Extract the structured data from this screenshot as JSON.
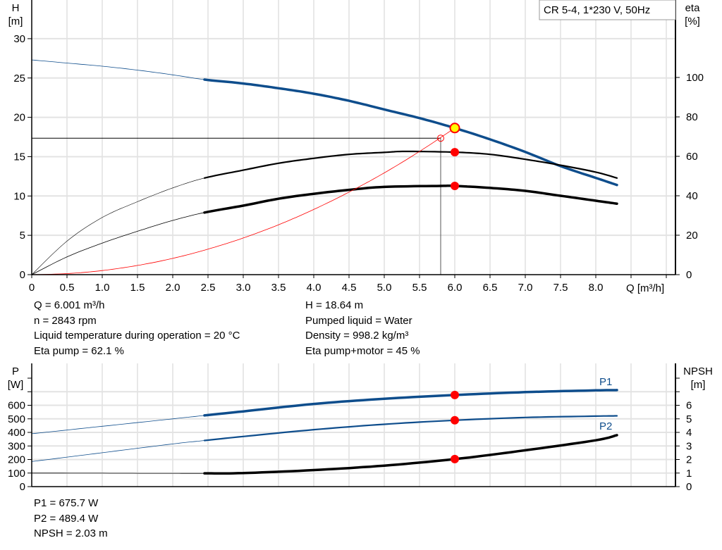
{
  "colors": {
    "head": "#0e4d8c",
    "eta": "#000000",
    "system": "#ff0000",
    "point": "#ff0000",
    "duty_point": "#ffff00",
    "p1": "#0e4d8c",
    "p2": "#0e4d8c",
    "npsh": "#000000",
    "grid": "#d0d0d0"
  },
  "legend_box": "CR 5-4, 1*230 V, 50Hz",
  "chart_data": [
    {
      "type": "line",
      "xlabel": "Q [m³/h]",
      "ylabel_left": [
        "H",
        "[m]"
      ],
      "ylabel_right": [
        "eta",
        "[%]"
      ],
      "xlim": [
        0,
        9
      ],
      "x_ticks": [
        "0",
        "0.5",
        "1.0",
        "1.5",
        "2.0",
        "2.5",
        "3.0",
        "3.5",
        "4.0",
        "4.5",
        "5.0",
        "5.5",
        "6.0",
        "6.5",
        "7.0",
        "7.5",
        "8.0"
      ],
      "ylim_left": [
        0,
        35
      ],
      "y_ticks_left": [
        "0",
        "5",
        "10",
        "15",
        "20",
        "25",
        "30"
      ],
      "ylim_right": [
        0,
        125
      ],
      "y_ticks_right": [
        "0",
        "20",
        "40",
        "60",
        "80",
        "100"
      ],
      "grid": true,
      "series": [
        {
          "key": "head",
          "axis": "left",
          "thick_from": 2.45,
          "x": [
            0,
            0.5,
            1,
            1.5,
            2,
            2.45,
            3,
            3.5,
            4,
            4.5,
            5,
            5.5,
            6,
            6.5,
            7,
            7.5,
            8,
            8.3
          ],
          "y": [
            27.3,
            26.9,
            26.5,
            26.0,
            25.4,
            24.8,
            24.3,
            23.7,
            23.0,
            22.1,
            21.0,
            19.9,
            18.64,
            17.2,
            15.6,
            13.8,
            12.3,
            11.4
          ]
        },
        {
          "key": "eta_pump",
          "axis": "right",
          "thick_from": 2.45,
          "x": [
            0,
            0.5,
            1,
            1.5,
            2,
            2.45,
            3,
            3.5,
            4,
            4.5,
            5,
            5.3,
            6,
            6.5,
            7,
            7.5,
            8,
            8.3
          ],
          "y": [
            0,
            17,
            29,
            37,
            44,
            49,
            53,
            56.5,
            59,
            61,
            62,
            62.5,
            62.1,
            61,
            58.5,
            55.5,
            52,
            49
          ]
        },
        {
          "key": "eta_pump_motor",
          "axis": "right",
          "thick_from": 2.45,
          "x": [
            0,
            0.5,
            1,
            1.5,
            2,
            2.45,
            3,
            3.5,
            4,
            4.5,
            5,
            5.8,
            6,
            6.5,
            7,
            7.5,
            8,
            8.3
          ],
          "y": [
            0,
            9,
            16,
            22,
            27.5,
            31.5,
            35,
            38.5,
            41,
            43,
            44.5,
            45,
            45,
            44,
            42.5,
            40,
            37.5,
            36
          ]
        },
        {
          "key": "system",
          "axis": "left",
          "thick_from": null,
          "x": [
            0,
            0.5,
            1,
            1.5,
            2,
            2.5,
            3,
            3.5,
            4,
            4.5,
            5,
            5.5,
            6
          ],
          "y": [
            0,
            0.13,
            0.52,
            1.17,
            2.07,
            3.24,
            4.66,
            6.34,
            8.29,
            10.49,
            12.94,
            15.66,
            18.64
          ]
        }
      ],
      "points": [
        {
          "key": "duty_point",
          "x": 6.0,
          "y": 18.64,
          "axis": "left"
        },
        {
          "key": "eta_pump_point",
          "x": 6.0,
          "y": 62.1,
          "axis": "right"
        },
        {
          "key": "eta_pump_motor_point",
          "x": 6.0,
          "y": 45,
          "axis": "right"
        }
      ],
      "operating_marker": {
        "x": 5.8,
        "y": 17.35
      }
    },
    {
      "type": "line",
      "ylabel_left": [
        "P",
        "[W]"
      ],
      "ylabel_right": [
        "NPSH",
        "[m]"
      ],
      "xlim": [
        0,
        9
      ],
      "ylim_left": [
        0,
        900
      ],
      "y_ticks_left": [
        "0",
        "100",
        "200",
        "300",
        "400",
        "500",
        "600"
      ],
      "ylim_right": [
        0,
        9
      ],
      "y_ticks_right": [
        "0",
        "1",
        "2",
        "3",
        "4",
        "5",
        "6"
      ],
      "grid": true,
      "series": [
        {
          "key": "p1",
          "name": "P1",
          "axis": "left",
          "thick_from": 2.45,
          "x": [
            0,
            1,
            2,
            2.45,
            3,
            4,
            5,
            6,
            7,
            8,
            8.3
          ],
          "y": [
            390,
            445,
            500,
            525,
            555,
            610,
            648,
            675.7,
            697,
            710,
            712
          ]
        },
        {
          "key": "p2",
          "name": "P2",
          "axis": "left",
          "thick_from": 2.45,
          "x": [
            0,
            1,
            2,
            2.45,
            3,
            4,
            5,
            6,
            7,
            8,
            8.3
          ],
          "y": [
            185,
            250,
            315,
            340,
            370,
            420,
            460,
            489.4,
            510,
            520,
            522
          ]
        },
        {
          "key": "npsh",
          "axis": "right",
          "thick_from": 2.45,
          "x": [
            0,
            1,
            2,
            2.45,
            3,
            4,
            5,
            6,
            7,
            8,
            8.3
          ],
          "y": [
            1.0,
            0.99,
            0.98,
            0.98,
            1.0,
            1.22,
            1.55,
            2.03,
            2.68,
            3.42,
            3.8
          ]
        }
      ],
      "points": [
        {
          "key": "p1_point",
          "x": 6.0,
          "y": 675.7,
          "axis": "left"
        },
        {
          "key": "p2_point",
          "x": 6.0,
          "y": 489.4,
          "axis": "left"
        },
        {
          "key": "npsh_point",
          "x": 6.0,
          "y": 2.03,
          "axis": "right"
        }
      ]
    }
  ],
  "info_top": {
    "left": [
      "Q = 6.001 m³/h",
      "n = 2843 rpm",
      "Liquid temperature during operation = 20 °C",
      "Eta pump = 62.1 %"
    ],
    "right": [
      "H = 18.64 m",
      "Pumped liquid = Water",
      "Density = 998.2 kg/m³",
      "Eta pump+motor = 45 %"
    ]
  },
  "info_bottom": [
    "P1 = 675.7 W",
    "P2 = 489.4 W",
    "NPSH = 2.03 m"
  ]
}
